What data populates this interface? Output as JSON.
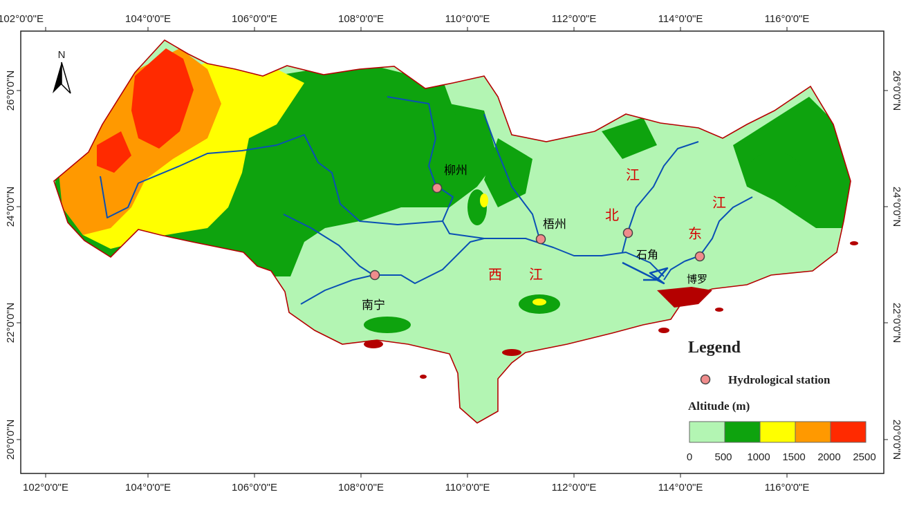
{
  "map": {
    "lon_ticks": [
      "102°0'0\"E",
      "104°0'0\"E",
      "106°0'0\"E",
      "108°0'0\"E",
      "110°0'0\"E",
      "112°0'0\"E",
      "114°0'0\"E",
      "116°0'0\"E"
    ],
    "lat_ticks": [
      "26°0'0\"N",
      "24°0'0\"N",
      "22°0'0\"N",
      "20°0'0\"N"
    ],
    "north_label": "N"
  },
  "cities": [
    {
      "label": "柳州",
      "symbol": "station"
    },
    {
      "label": "梧州",
      "symbol": "station"
    },
    {
      "label": "南宁",
      "symbol": "station"
    },
    {
      "label": "石角",
      "symbol": "station"
    },
    {
      "label": "博罗",
      "symbol": "station"
    }
  ],
  "rivers": [
    {
      "label": "西"
    },
    {
      "label": "江"
    },
    {
      "label": "北"
    },
    {
      "label": "江"
    },
    {
      "label": "东"
    },
    {
      "label": "江"
    }
  ],
  "legend": {
    "title": "Legend",
    "station_label": "Hydrological station",
    "altitude_title": "Altitude (m)",
    "classes": [
      {
        "color": "#b3f5b3"
      },
      {
        "color": "#0ea30e"
      },
      {
        "color": "#ffff00"
      },
      {
        "color": "#ff9900"
      },
      {
        "color": "#ff2a00"
      }
    ],
    "breaks": [
      "0",
      "500",
      "1000",
      "1500",
      "2000",
      "2500"
    ]
  },
  "colors": {
    "river": "#0a50b4",
    "boundary": "#b40000",
    "station": "#f08c8c"
  }
}
